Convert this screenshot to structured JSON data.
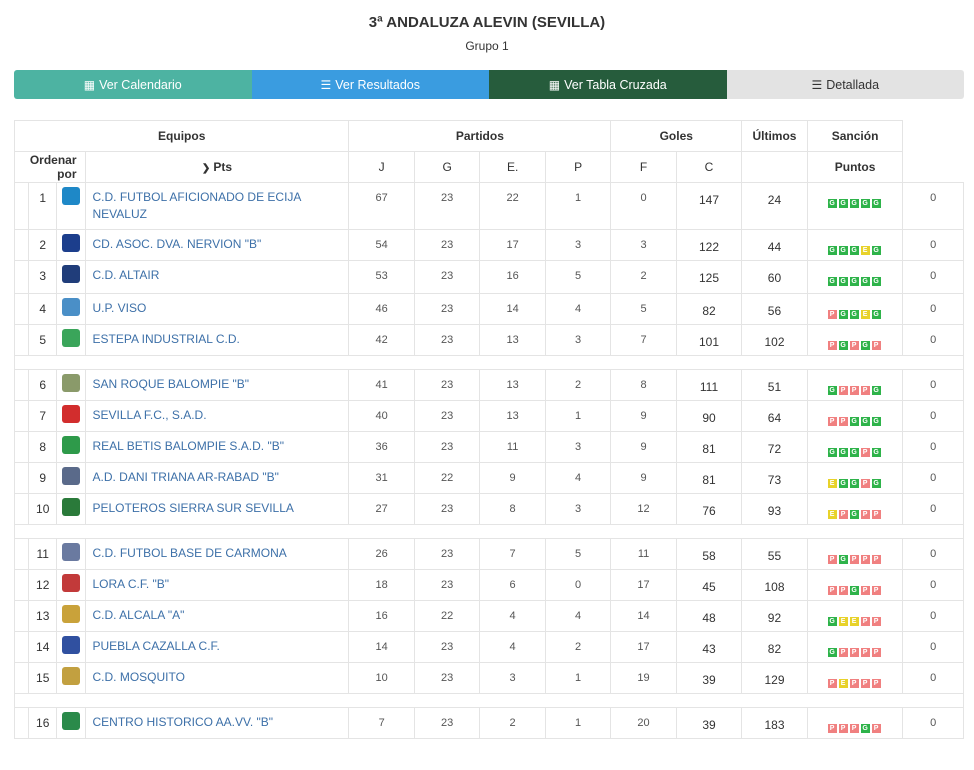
{
  "header": {
    "title": "3ª ANDALUZA ALEVIN (SEVILLA)",
    "subtitle": "Grupo 1"
  },
  "buttons": [
    {
      "label": "Ver Calendario",
      "icon": "calendar-icon"
    },
    {
      "label": "Ver Resultados",
      "icon": "list-icon"
    },
    {
      "label": "Ver Tabla Cruzada",
      "icon": "table-icon"
    },
    {
      "label": "Detallada",
      "icon": "detail-list-icon"
    }
  ],
  "table_head": {
    "equipos": "Equipos",
    "partidos": "Partidos",
    "goles": "Goles",
    "ultimos": "Últimos",
    "sancion": "Sanción",
    "ordenar": "Ordenar por",
    "pts": "Pts",
    "j": "J",
    "g": "G",
    "e": "E.",
    "p": "P",
    "f": "F",
    "c": "C",
    "puntos": "Puntos"
  },
  "colors": {
    "win": "#2eb34a",
    "loss": "#f08080",
    "draw": "#e8d22a",
    "team_link": "#3d70a8"
  },
  "teams": [
    {
      "pos": "1",
      "name": "C.D. FUTBOL AFICIONADO DE ECIJA NEVALUZ",
      "pts": "67",
      "j": "23",
      "g": "22",
      "e": "1",
      "p": "0",
      "f": "147",
      "c": "24",
      "last": [
        "G",
        "G",
        "G",
        "G",
        "G"
      ],
      "san": "0",
      "logo": "#1e88c7"
    },
    {
      "pos": "2",
      "name": "CD. ASOC. DVA. NERVION \"B\"",
      "pts": "54",
      "j": "23",
      "g": "17",
      "e": "3",
      "p": "3",
      "f": "122",
      "c": "44",
      "last": [
        "G",
        "G",
        "G",
        "E",
        "G"
      ],
      "san": "0",
      "logo": "#1c3e8c"
    },
    {
      "pos": "3",
      "name": "C.D. ALTAIR",
      "pts": "53",
      "j": "23",
      "g": "16",
      "e": "5",
      "p": "2",
      "f": "125",
      "c": "60",
      "last": [
        "G",
        "G",
        "G",
        "G",
        "G"
      ],
      "san": "0",
      "logo": "#203d7a"
    },
    {
      "pos": "4",
      "name": "U.P. VISO",
      "pts": "46",
      "j": "23",
      "g": "14",
      "e": "4",
      "p": "5",
      "f": "82",
      "c": "56",
      "last": [
        "P",
        "G",
        "G",
        "E",
        "G"
      ],
      "san": "0",
      "logo": "#4a8fc7"
    },
    {
      "pos": "5",
      "name": "ESTEPA INDUSTRIAL C.D.",
      "pts": "42",
      "j": "23",
      "g": "13",
      "e": "3",
      "p": "7",
      "f": "101",
      "c": "102",
      "last": [
        "P",
        "G",
        "P",
        "G",
        "P"
      ],
      "san": "0",
      "logo": "#3aa55a"
    },
    {
      "pos": "6",
      "name": "SAN ROQUE BALOMPIE \"B\"",
      "pts": "41",
      "j": "23",
      "g": "13",
      "e": "2",
      "p": "8",
      "f": "111",
      "c": "51",
      "last": [
        "G",
        "P",
        "P",
        "P",
        "G"
      ],
      "san": "0",
      "logo": "#8a9a6a"
    },
    {
      "pos": "7",
      "name": "SEVILLA F.C., S.A.D.",
      "pts": "40",
      "j": "23",
      "g": "13",
      "e": "1",
      "p": "9",
      "f": "90",
      "c": "64",
      "last": [
        "P",
        "P",
        "G",
        "G",
        "G"
      ],
      "san": "0",
      "logo": "#d22d2d"
    },
    {
      "pos": "8",
      "name": "REAL BETIS BALOMPIE S.A.D. \"B\"",
      "pts": "36",
      "j": "23",
      "g": "11",
      "e": "3",
      "p": "9",
      "f": "81",
      "c": "72",
      "last": [
        "G",
        "G",
        "G",
        "P",
        "G"
      ],
      "san": "0",
      "logo": "#2e9a4a"
    },
    {
      "pos": "9",
      "name": "A.D. DANI TRIANA AR-RABAD \"B\"",
      "pts": "31",
      "j": "22",
      "g": "9",
      "e": "4",
      "p": "9",
      "f": "81",
      "c": "73",
      "last": [
        "E",
        "G",
        "G",
        "P",
        "G"
      ],
      "san": "0",
      "logo": "#5a6a8a"
    },
    {
      "pos": "10",
      "name": "PELOTEROS SIERRA SUR SEVILLA",
      "pts": "27",
      "j": "23",
      "g": "8",
      "e": "3",
      "p": "12",
      "f": "76",
      "c": "93",
      "last": [
        "E",
        "P",
        "G",
        "P",
        "P"
      ],
      "san": "0",
      "logo": "#2a7a3a"
    },
    {
      "pos": "11",
      "name": "C.D. FUTBOL BASE DE CARMONA",
      "pts": "26",
      "j": "23",
      "g": "7",
      "e": "5",
      "p": "11",
      "f": "58",
      "c": "55",
      "last": [
        "P",
        "G",
        "P",
        "P",
        "P"
      ],
      "san": "0",
      "logo": "#6a7aa0"
    },
    {
      "pos": "12",
      "name": "LORA C.F. \"B\"",
      "pts": "18",
      "j": "23",
      "g": "6",
      "e": "0",
      "p": "17",
      "f": "45",
      "c": "108",
      "last": [
        "P",
        "P",
        "G",
        "P",
        "P"
      ],
      "san": "0",
      "logo": "#c23a3a"
    },
    {
      "pos": "13",
      "name": "C.D. ALCALA \"A\"",
      "pts": "16",
      "j": "22",
      "g": "4",
      "e": "4",
      "p": "14",
      "f": "48",
      "c": "92",
      "last": [
        "G",
        "E",
        "E",
        "P",
        "P"
      ],
      "san": "0",
      "logo": "#c9a23a"
    },
    {
      "pos": "14",
      "name": "PUEBLA CAZALLA C.F.",
      "pts": "14",
      "j": "23",
      "g": "4",
      "e": "2",
      "p": "17",
      "f": "43",
      "c": "82",
      "last": [
        "G",
        "P",
        "P",
        "P",
        "P"
      ],
      "san": "0",
      "logo": "#3050a0"
    },
    {
      "pos": "15",
      "name": "C.D. MOSQUITO",
      "pts": "10",
      "j": "23",
      "g": "3",
      "e": "1",
      "p": "19",
      "f": "39",
      "c": "129",
      "last": [
        "P",
        "E",
        "P",
        "P",
        "P"
      ],
      "san": "0",
      "logo": "#c2a040"
    },
    {
      "pos": "16",
      "name": "CENTRO HISTORICO AA.VV. \"B\"",
      "pts": "7",
      "j": "23",
      "g": "2",
      "e": "1",
      "p": "20",
      "f": "39",
      "c": "183",
      "last": [
        "P",
        "P",
        "P",
        "G",
        "P"
      ],
      "san": "0",
      "logo": "#2a8a4a"
    }
  ]
}
